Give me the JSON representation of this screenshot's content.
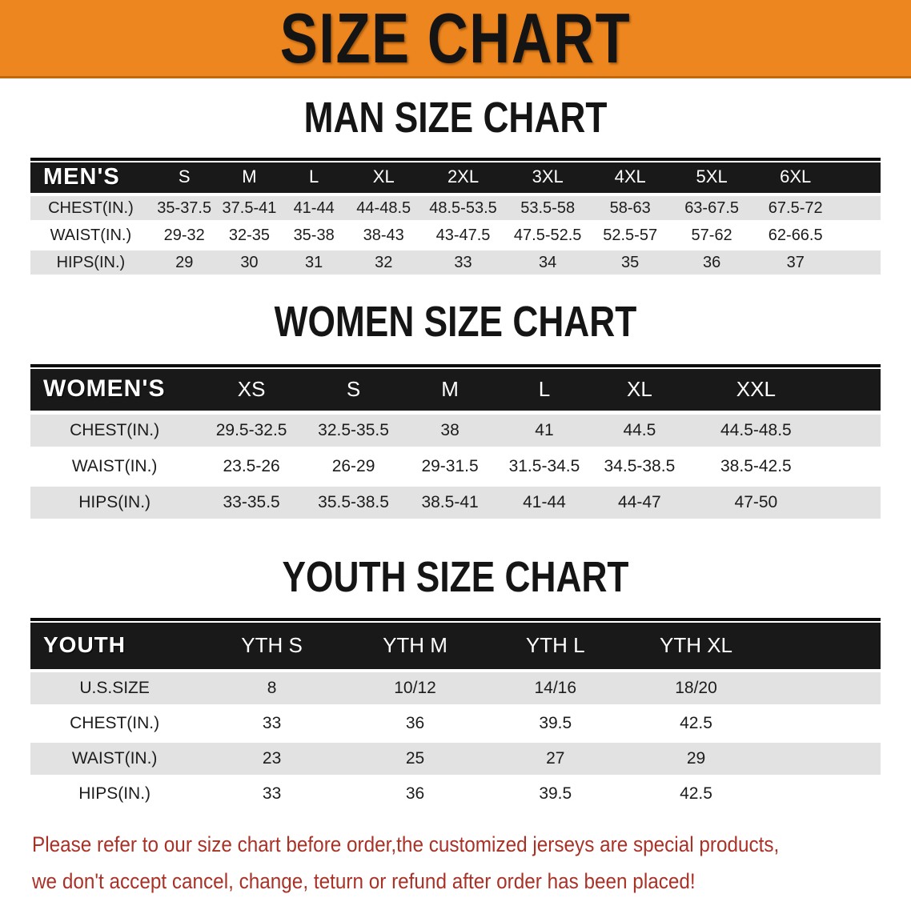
{
  "banner": {
    "title": "SIZE CHART"
  },
  "men": {
    "heading": "MAN SIZE CHART",
    "group_label": "MEN'S",
    "columns": [
      "S",
      "M",
      "L",
      "XL",
      "2XL",
      "3XL",
      "4XL",
      "5XL",
      "6XL"
    ],
    "rows": [
      {
        "label": "CHEST(IN.)",
        "values": [
          "35-37.5",
          "37.5-41",
          "41-44",
          "44-48.5",
          "48.5-53.5",
          "53.5-58",
          "58-63",
          "63-67.5",
          "67.5-72"
        ]
      },
      {
        "label": "WAIST(IN.)",
        "values": [
          "29-32",
          "32-35",
          "35-38",
          "38-43",
          "43-47.5",
          "47.5-52.5",
          "52.5-57",
          "57-62",
          "62-66.5"
        ]
      },
      {
        "label": "HIPS(IN.)",
        "values": [
          "29",
          "30",
          "31",
          "32",
          "33",
          "34",
          "35",
          "36",
          "37"
        ]
      }
    ]
  },
  "women": {
    "heading": "WOMEN SIZE CHART",
    "group_label": "WOMEN'S",
    "columns": [
      "XS",
      "S",
      "M",
      "L",
      "XL",
      "XXL"
    ],
    "rows": [
      {
        "label": "CHEST(IN.)",
        "values": [
          "29.5-32.5",
          "32.5-35.5",
          "38",
          "41",
          "44.5",
          "44.5-48.5"
        ]
      },
      {
        "label": "WAIST(IN.)",
        "values": [
          "23.5-26",
          "26-29",
          "29-31.5",
          "31.5-34.5",
          "34.5-38.5",
          "38.5-42.5"
        ]
      },
      {
        "label": "HIPS(IN.)",
        "values": [
          "33-35.5",
          "35.5-38.5",
          "38.5-41",
          "41-44",
          "44-47",
          "47-50"
        ]
      }
    ]
  },
  "youth": {
    "heading": "YOUTH SIZE CHART",
    "group_label": "YOUTH",
    "columns": [
      "YTH S",
      "YTH M",
      "YTH L",
      "YTH XL"
    ],
    "rows": [
      {
        "label": "U.S.SIZE",
        "values": [
          "8",
          "10/12",
          "14/16",
          "18/20"
        ]
      },
      {
        "label": "CHEST(IN.)",
        "values": [
          "33",
          "36",
          "39.5",
          "42.5"
        ]
      },
      {
        "label": "WAIST(IN.)",
        "values": [
          "23",
          "25",
          "27",
          "29"
        ]
      },
      {
        "label": "HIPS(IN.)",
        "values": [
          "33",
          "36",
          "39.5",
          "42.5"
        ]
      }
    ]
  },
  "footer": {
    "line1": "Please refer to our size chart before order,the customized jerseys are special products,",
    "line2": "we don't accept cancel, change, teturn or refund after order has been placed!"
  },
  "colors": {
    "banner_orange": "#ED861F",
    "banner_edge": "#C1690F",
    "header_black": "#191919",
    "row_gray": "#E2E2E2",
    "footer_red": "#A93228"
  }
}
